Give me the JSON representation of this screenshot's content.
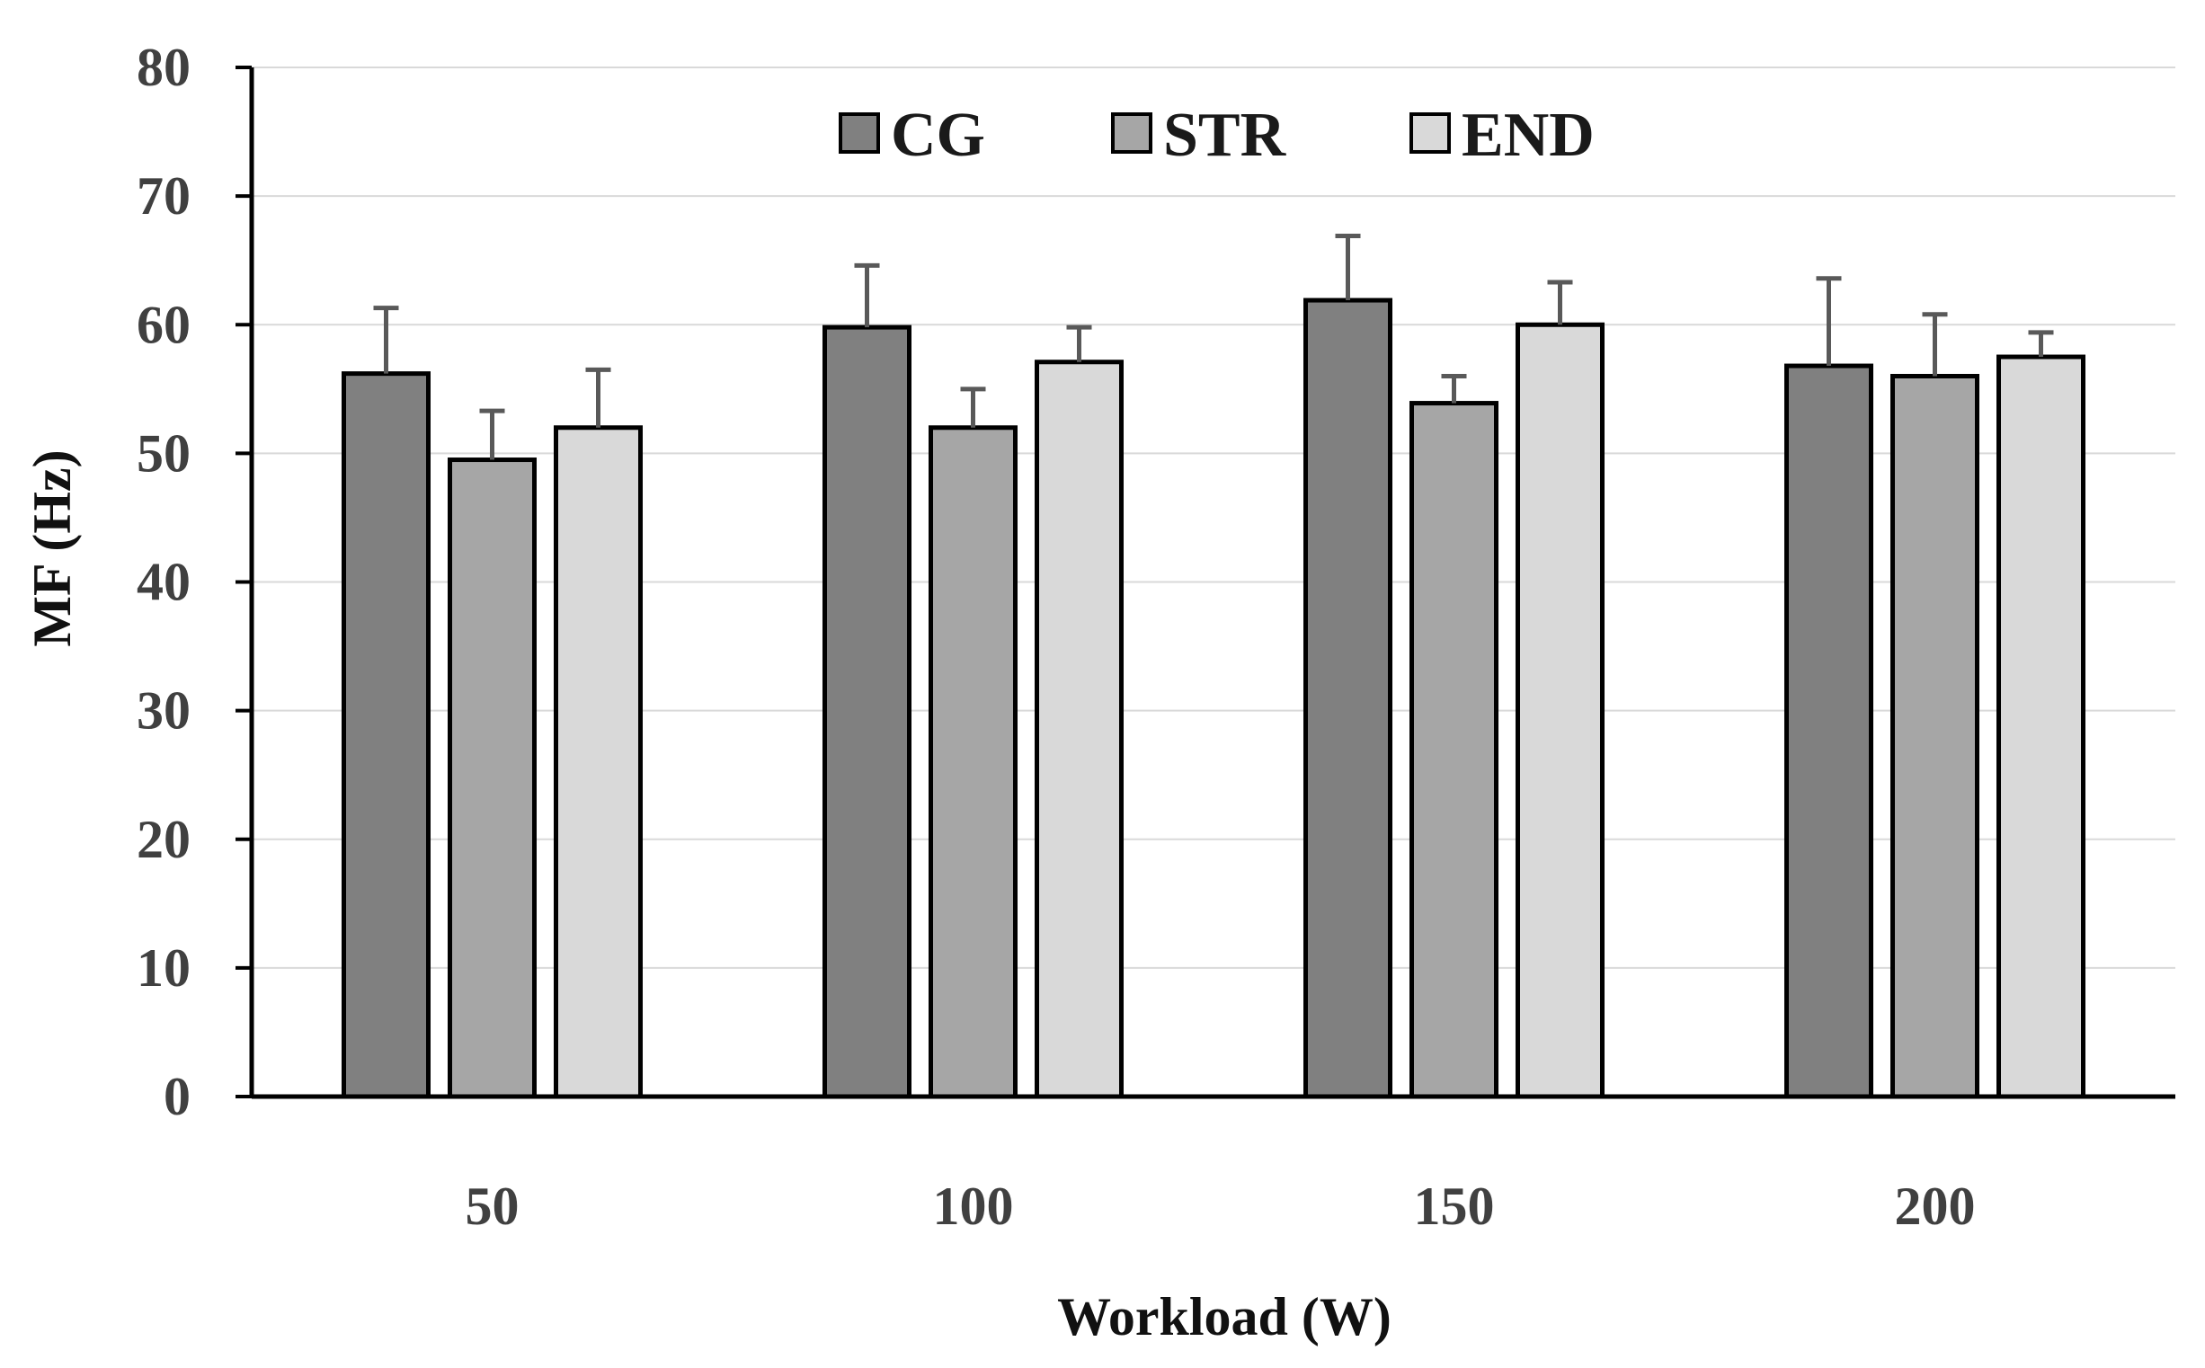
{
  "chart_data": {
    "type": "bar",
    "xlabel": "Workload (W)",
    "ylabel": "MF (Hz)",
    "categories": [
      "50",
      "100",
      "150",
      "200"
    ],
    "ylim": [
      0,
      80
    ],
    "yticks": [
      "0",
      "10",
      "20",
      "30",
      "40",
      "50",
      "60",
      "70",
      "80"
    ],
    "grid": true,
    "legend_position": "top-center",
    "series": [
      {
        "name": "CG",
        "color": "#808080",
        "values": [
          56.2,
          59.8,
          61.9,
          56.8
        ],
        "errors": [
          5.1,
          4.8,
          5.0,
          6.8
        ]
      },
      {
        "name": "STR",
        "color": "#a6a6a6",
        "values": [
          49.5,
          52.0,
          53.9,
          56.0
        ],
        "errors": [
          3.8,
          3.0,
          2.1,
          4.8
        ]
      },
      {
        "name": "END",
        "color": "#d9d9d9",
        "values": [
          52.0,
          57.1,
          60.0,
          57.5
        ],
        "errors": [
          4.5,
          2.7,
          3.3,
          1.9
        ]
      }
    ]
  }
}
